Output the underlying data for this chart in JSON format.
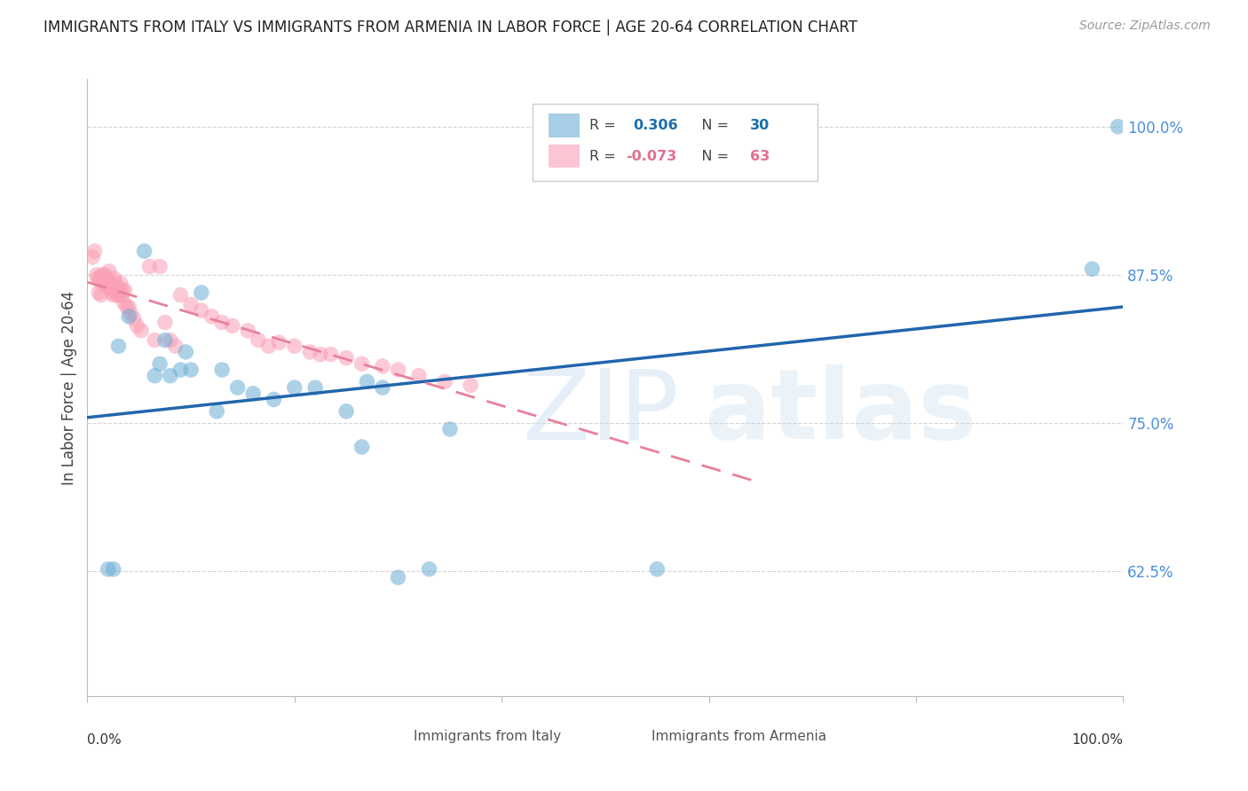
{
  "title": "IMMIGRANTS FROM ITALY VS IMMIGRANTS FROM ARMENIA IN LABOR FORCE | AGE 20-64 CORRELATION CHART",
  "source": "Source: ZipAtlas.com",
  "ylabel": "In Labor Force | Age 20-64",
  "ytick_labels": [
    "62.5%",
    "75.0%",
    "87.5%",
    "100.0%"
  ],
  "ytick_values": [
    0.625,
    0.75,
    0.875,
    1.0
  ],
  "xlim": [
    0.0,
    1.0
  ],
  "ylim": [
    0.52,
    1.04
  ],
  "italy_color": "#6baed6",
  "armenia_color": "#fa9fb5",
  "italy_line_color": "#2166ac",
  "armenia_line_color": "#e8819a",
  "italy_x": [
    0.02,
    0.025,
    0.03,
    0.04,
    0.055,
    0.065,
    0.07,
    0.075,
    0.08,
    0.09,
    0.095,
    0.1,
    0.11,
    0.125,
    0.13,
    0.145,
    0.16,
    0.18,
    0.2,
    0.22,
    0.25,
    0.265,
    0.27,
    0.285,
    0.3,
    0.33,
    0.35,
    0.55,
    0.97,
    0.995
  ],
  "italy_y": [
    0.627,
    0.627,
    0.815,
    0.84,
    0.895,
    0.79,
    0.8,
    0.82,
    0.79,
    0.795,
    0.81,
    0.795,
    0.86,
    0.76,
    0.795,
    0.78,
    0.775,
    0.77,
    0.78,
    0.78,
    0.76,
    0.73,
    0.785,
    0.78,
    0.62,
    0.627,
    0.745,
    0.627,
    0.88,
    1.0
  ],
  "armenia_x": [
    0.005,
    0.007,
    0.009,
    0.01,
    0.011,
    0.012,
    0.013,
    0.014,
    0.015,
    0.016,
    0.017,
    0.018,
    0.019,
    0.02,
    0.021,
    0.022,
    0.023,
    0.024,
    0.025,
    0.026,
    0.027,
    0.028,
    0.029,
    0.03,
    0.031,
    0.032,
    0.033,
    0.034,
    0.035,
    0.036,
    0.038,
    0.04,
    0.042,
    0.045,
    0.048,
    0.052,
    0.06,
    0.065,
    0.07,
    0.075,
    0.08,
    0.085,
    0.09,
    0.1,
    0.11,
    0.12,
    0.13,
    0.14,
    0.155,
    0.165,
    0.175,
    0.185,
    0.2,
    0.215,
    0.225,
    0.235,
    0.25,
    0.265,
    0.285,
    0.3,
    0.32,
    0.345,
    0.37
  ],
  "armenia_y": [
    0.89,
    0.895,
    0.875,
    0.872,
    0.86,
    0.87,
    0.858,
    0.875,
    0.87,
    0.867,
    0.875,
    0.872,
    0.869,
    0.865,
    0.878,
    0.868,
    0.863,
    0.86,
    0.858,
    0.872,
    0.868,
    0.862,
    0.858,
    0.858,
    0.863,
    0.868,
    0.858,
    0.862,
    0.852,
    0.862,
    0.848,
    0.848,
    0.842,
    0.838,
    0.832,
    0.828,
    0.882,
    0.82,
    0.882,
    0.835,
    0.82,
    0.815,
    0.858,
    0.85,
    0.845,
    0.84,
    0.835,
    0.832,
    0.828,
    0.82,
    0.815,
    0.818,
    0.815,
    0.81,
    0.808,
    0.808,
    0.805,
    0.8,
    0.798,
    0.795,
    0.79,
    0.785,
    0.782
  ],
  "background_color": "#ffffff",
  "grid_color": "#d0d0d0"
}
